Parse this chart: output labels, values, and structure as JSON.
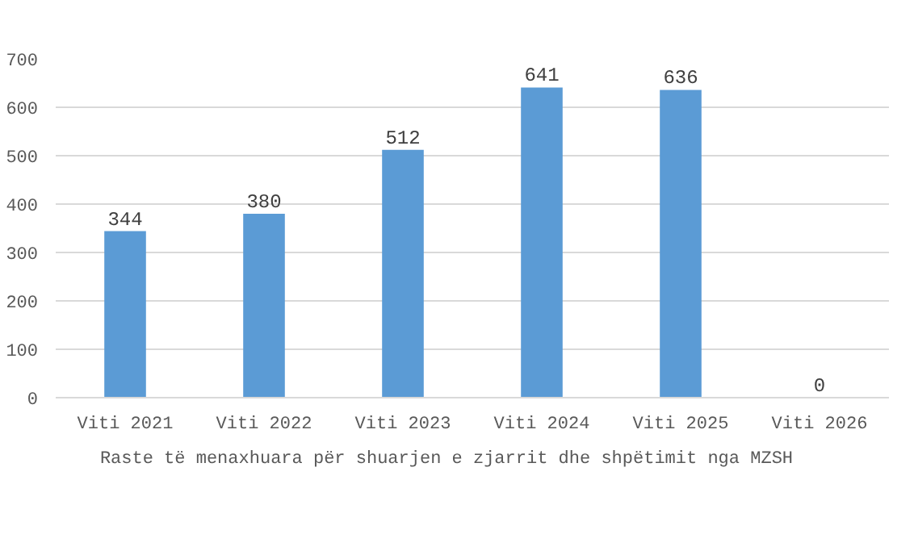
{
  "chart_data": {
    "type": "bar",
    "categories": [
      "Viti 2021",
      "Viti 2022",
      "Viti 2023",
      "Viti 2024",
      "Viti 2025",
      "Viti 2026"
    ],
    "series": [
      {
        "name": "Raste të menaxhuara për shuarjen e zjarrit dhe shpëtimit nga MZSH",
        "color": "#5b9bd5",
        "values": [
          344,
          380,
          512,
          641,
          636,
          0
        ]
      }
    ],
    "ylim": [
      0,
      700
    ],
    "yticks": [
      0,
      100,
      200,
      300,
      400,
      500,
      600,
      700
    ],
    "grid": "y",
    "legend": "bottom",
    "data_labels": true
  }
}
